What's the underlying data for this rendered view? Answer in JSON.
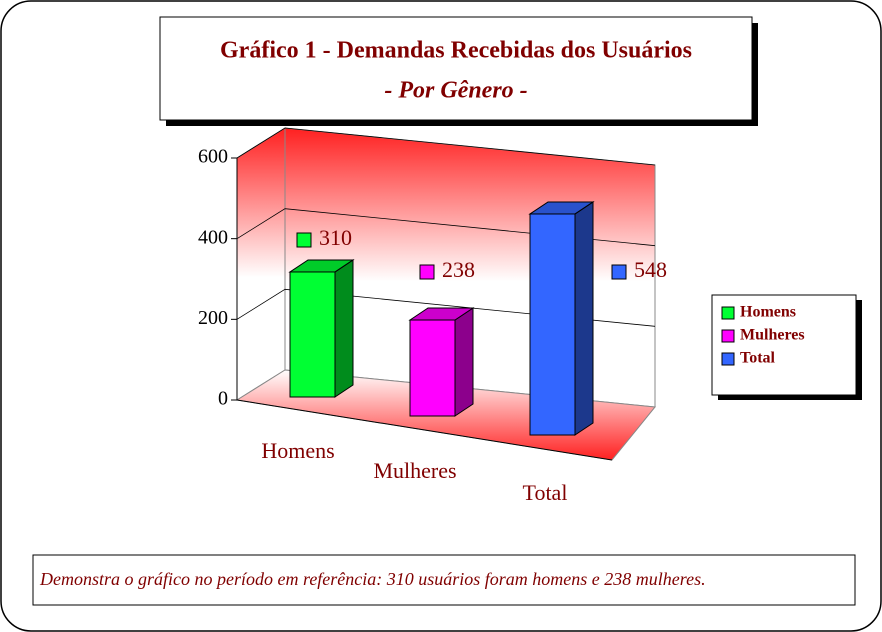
{
  "chart_data": {
    "type": "bar3d",
    "title": "Gráfico 1 - Demandas Recebidas dos Usuários",
    "subtitle": "- Por Gênero -",
    "categories": [
      "Homens",
      "Mulheres",
      "Total"
    ],
    "values": [
      310,
      238,
      548
    ],
    "colors": [
      "#00ff33",
      "#ff00ff",
      "#3366ff"
    ],
    "ylim": [
      0,
      600
    ],
    "yticks": [
      0,
      200,
      400,
      600
    ],
    "grid": true,
    "legend": "right",
    "annotation": "Demonstra o gráfico no período em referência: 310 usuários foram homens e 238 mulheres."
  }
}
